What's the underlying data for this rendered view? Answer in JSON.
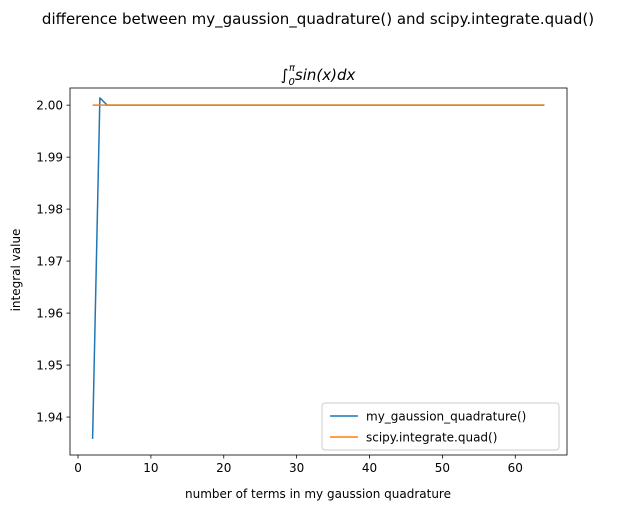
{
  "chart_data": {
    "type": "line",
    "suptitle": "difference between my_gaussion_quadrature() and scipy.integrate.quad()",
    "title": {
      "prefix": "∫",
      "sub": "0",
      "sup": "π",
      "body": "sin(x)dx"
    },
    "xlabel": "number of terms in my gaussion quadrature",
    "ylabel": "integral value",
    "xlim": [
      -1.1,
      67.1
    ],
    "ylim": [
      1.9327,
      2.0033
    ],
    "xticks": [
      0,
      10,
      20,
      30,
      40,
      50,
      60
    ],
    "xtick_labels": [
      "0",
      "10",
      "20",
      "30",
      "40",
      "50",
      "60"
    ],
    "yticks": [
      1.94,
      1.95,
      1.96,
      1.97,
      1.98,
      1.99,
      2.0
    ],
    "ytick_labels": [
      "1.94",
      "1.95",
      "1.96",
      "1.97",
      "1.98",
      "1.99",
      "2.00"
    ],
    "grid": false,
    "legend_position": "lower-right",
    "series": [
      {
        "name": "my_gaussion_quadrature()",
        "color": "#1f77b4",
        "x": [
          2,
          3,
          4,
          5,
          6,
          7,
          8,
          9,
          10,
          11,
          12,
          13,
          14,
          15,
          16,
          17,
          18,
          19,
          20,
          21,
          22,
          23,
          24,
          25,
          26,
          27,
          28,
          29,
          30,
          31,
          32,
          33,
          34,
          35,
          36,
          37,
          38,
          39,
          40,
          41,
          42,
          43,
          44,
          45,
          46,
          47,
          48,
          49,
          50,
          51,
          52,
          53,
          54,
          55,
          56,
          57,
          58,
          59,
          60,
          61,
          62,
          63,
          64
        ],
        "y": [
          1.9358,
          2.0014,
          2.0,
          2.0,
          2.0,
          2.0,
          2.0,
          2.0,
          2.0,
          2.0,
          2.0,
          2.0,
          2.0,
          2.0,
          2.0,
          2.0,
          2.0,
          2.0,
          2.0,
          2.0,
          2.0,
          2.0,
          2.0,
          2.0,
          2.0,
          2.0,
          2.0,
          2.0,
          2.0,
          2.0,
          2.0,
          2.0,
          2.0,
          2.0,
          2.0,
          2.0,
          2.0,
          2.0,
          2.0,
          2.0,
          2.0,
          2.0,
          2.0,
          2.0,
          2.0,
          2.0,
          2.0,
          2.0,
          2.0,
          2.0,
          2.0,
          2.0,
          2.0,
          2.0,
          2.0,
          2.0,
          2.0,
          2.0,
          2.0,
          2.0,
          2.0,
          2.0,
          2.0
        ]
      },
      {
        "name": "scipy.integrate.quad()",
        "color": "#ff7f0e",
        "x": [
          2,
          64
        ],
        "y": [
          2.0,
          2.0
        ]
      }
    ]
  }
}
